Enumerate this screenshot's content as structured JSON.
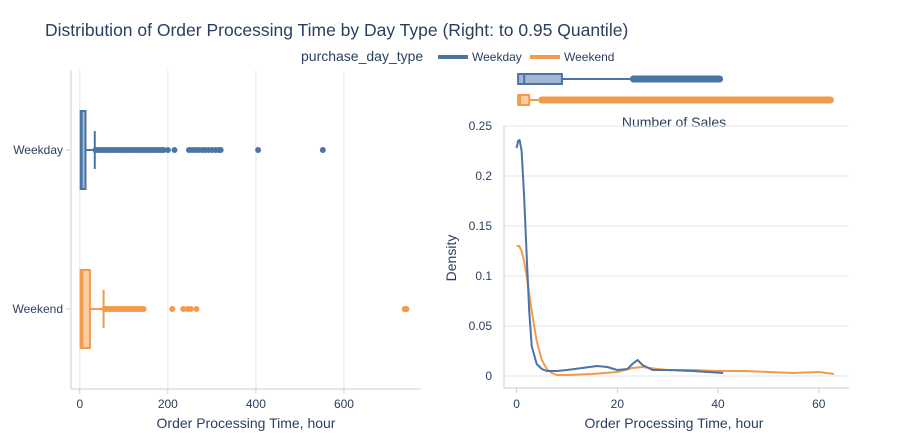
{
  "title": "Distribution of Order Processing Time by Day Type (Right: to 0.95 Quantile)",
  "legend": {
    "title": "purchase_day_type",
    "items": [
      {
        "label": "Weekday",
        "color": "#4a74a4"
      },
      {
        "label": "Weekend",
        "color": "#f39b4a"
      }
    ]
  },
  "chart_data": [
    {
      "type": "box",
      "orientation": "horizontal",
      "xlabel": "Order Processing Time, hour",
      "xlim": [
        -20,
        775
      ],
      "xticks": [
        0,
        200,
        400,
        600
      ],
      "grid": true,
      "categories": [
        "Weekday",
        "Weekend"
      ],
      "series": [
        {
          "name": "Weekday",
          "color": "#4a74a4",
          "min": 0,
          "q1": 2,
          "median": 4,
          "q3": 13,
          "upper_fence": 34,
          "outliers": [
            36,
            40,
            45,
            50,
            55,
            60,
            65,
            70,
            75,
            80,
            85,
            90,
            95,
            100,
            105,
            110,
            115,
            120,
            125,
            130,
            135,
            140,
            145,
            150,
            155,
            160,
            165,
            170,
            175,
            180,
            185,
            190,
            200,
            215,
            248,
            255,
            262,
            270,
            278,
            285,
            292,
            300,
            308,
            315,
            320,
            405,
            552
          ]
        },
        {
          "name": "Weekend",
          "color": "#f39b4a",
          "min": 0,
          "q1": 2,
          "median": 6,
          "q3": 23,
          "upper_fence": 54,
          "outliers": [
            56,
            60,
            65,
            70,
            75,
            80,
            85,
            90,
            95,
            100,
            105,
            110,
            115,
            120,
            125,
            130,
            135,
            140,
            145,
            210,
            235,
            245,
            252,
            265,
            738,
            742
          ]
        }
      ]
    },
    {
      "type": "box",
      "orientation": "horizontal",
      "role": "marginal",
      "xlim": [
        -2.5,
        66
      ],
      "series": [
        {
          "name": "Weekday",
          "color": "#4a74a4",
          "min": 0,
          "q1": 0.3,
          "median": 1.5,
          "q3": 9,
          "upper_fence": 22.5,
          "outlier_range": [
            22.5,
            41
          ]
        },
        {
          "name": "Weekend",
          "color": "#f39b4a",
          "min": 0,
          "q1": 0.3,
          "median": 0.7,
          "q3": 2.5,
          "upper_fence": 4.3,
          "outlier_range": [
            4.3,
            63
          ]
        }
      ]
    },
    {
      "type": "line",
      "title": "Number of Sales",
      "xlabel": "Order Processing Time, hour",
      "ylabel": "Density",
      "xlim": [
        -2.5,
        66
      ],
      "ylim": [
        -0.012,
        0.25
      ],
      "xticks": [
        0,
        20,
        40,
        60
      ],
      "yticks": [
        0,
        0.05,
        0.1,
        0.15,
        0.2,
        0.25
      ],
      "ytick_labels": [
        "0",
        "0.05",
        "0.1",
        "0.15",
        "0.2",
        "0.25"
      ],
      "grid": true,
      "series": [
        {
          "name": "Weekday",
          "color": "#4a74a4",
          "points": [
            [
              0,
              0.228
            ],
            [
              0.3,
              0.235
            ],
            [
              0.6,
              0.236
            ],
            [
              1,
              0.225
            ],
            [
              1.5,
              0.18
            ],
            [
              2,
              0.12
            ],
            [
              2.5,
              0.065
            ],
            [
              3,
              0.03
            ],
            [
              4,
              0.012
            ],
            [
              5,
              0.007
            ],
            [
              6,
              0.005
            ],
            [
              8,
              0.005
            ],
            [
              10,
              0.006
            ],
            [
              13,
              0.008
            ],
            [
              16,
              0.01
            ],
            [
              18,
              0.009
            ],
            [
              20,
              0.006
            ],
            [
              22,
              0.007
            ],
            [
              23,
              0.012
            ],
            [
              24,
              0.016
            ],
            [
              25,
              0.011
            ],
            [
              27,
              0.006
            ],
            [
              30,
              0.006
            ],
            [
              35,
              0.005
            ],
            [
              38,
              0.004
            ],
            [
              41,
              0.003
            ]
          ]
        },
        {
          "name": "Weekend",
          "color": "#f39b4a",
          "points": [
            [
              0,
              0.13
            ],
            [
              0.5,
              0.13
            ],
            [
              1,
              0.125
            ],
            [
              1.5,
              0.115
            ],
            [
              2,
              0.1
            ],
            [
              3,
              0.065
            ],
            [
              4,
              0.035
            ],
            [
              5,
              0.016
            ],
            [
              6,
              0.007
            ],
            [
              7,
              0.003
            ],
            [
              8,
              0.001
            ],
            [
              10,
              0.001
            ],
            [
              15,
              0.002
            ],
            [
              20,
              0.004
            ],
            [
              23,
              0.008
            ],
            [
              25,
              0.009
            ],
            [
              28,
              0.007
            ],
            [
              30,
              0.006
            ],
            [
              35,
              0.006
            ],
            [
              40,
              0.005
            ],
            [
              45,
              0.005
            ],
            [
              50,
              0.004
            ],
            [
              55,
              0.003
            ],
            [
              60,
              0.004
            ],
            [
              63,
              0.002
            ]
          ]
        }
      ]
    }
  ]
}
